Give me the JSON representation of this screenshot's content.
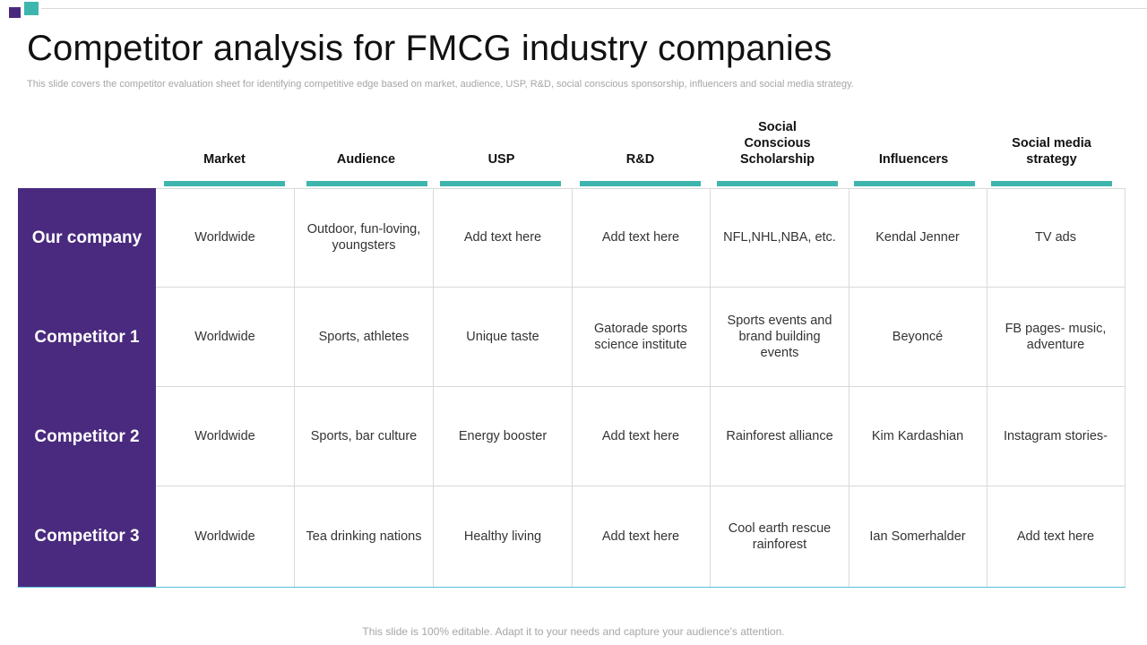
{
  "slide": {
    "title": "Competitor analysis for FMCG industry companies",
    "subtitle": "This slide covers the competitor evaluation sheet for identifying competitive edge based on market, audience,  USP, R&D, social conscious sponsorship, influencers and social media strategy.",
    "footer": "This slide is 100% editable. Adapt it to your needs and capture your audience's attention."
  },
  "colors": {
    "purple": "#4a2a7e",
    "teal": "#3fb6ad"
  },
  "table": {
    "columns": [
      "Market",
      "Audience",
      "USP",
      "R&D",
      "Social Conscious Scholarship",
      "Influencers",
      "Social media strategy"
    ],
    "rows": [
      {
        "label": "Our company",
        "cells": [
          "Worldwide",
          "Outdoor, fun-loving, youngsters",
          "Add text here",
          "Add text here",
          "NFL,NHL,NBA,  etc.",
          "Kendal Jenner",
          "TV ads"
        ]
      },
      {
        "label": "Competitor 1",
        "cells": [
          "Worldwide",
          "Sports, athletes",
          "Unique taste",
          "Gatorade sports science institute",
          "Sports events and brand building events",
          "Beyoncé",
          "FB pages- music, adventure"
        ]
      },
      {
        "label": "Competitor 2",
        "cells": [
          "Worldwide",
          "Sports, bar culture",
          "Energy booster",
          "Add text here",
          "Rainforest alliance",
          "Kim Kardashian",
          "Instagram stories-"
        ]
      },
      {
        "label": "Competitor 3",
        "cells": [
          "Worldwide",
          "Tea drinking nations",
          "Healthy living",
          "Add text here",
          "Cool earth rescue rainforest",
          "Ian Somerhalder",
          "Add text here"
        ]
      }
    ]
  }
}
